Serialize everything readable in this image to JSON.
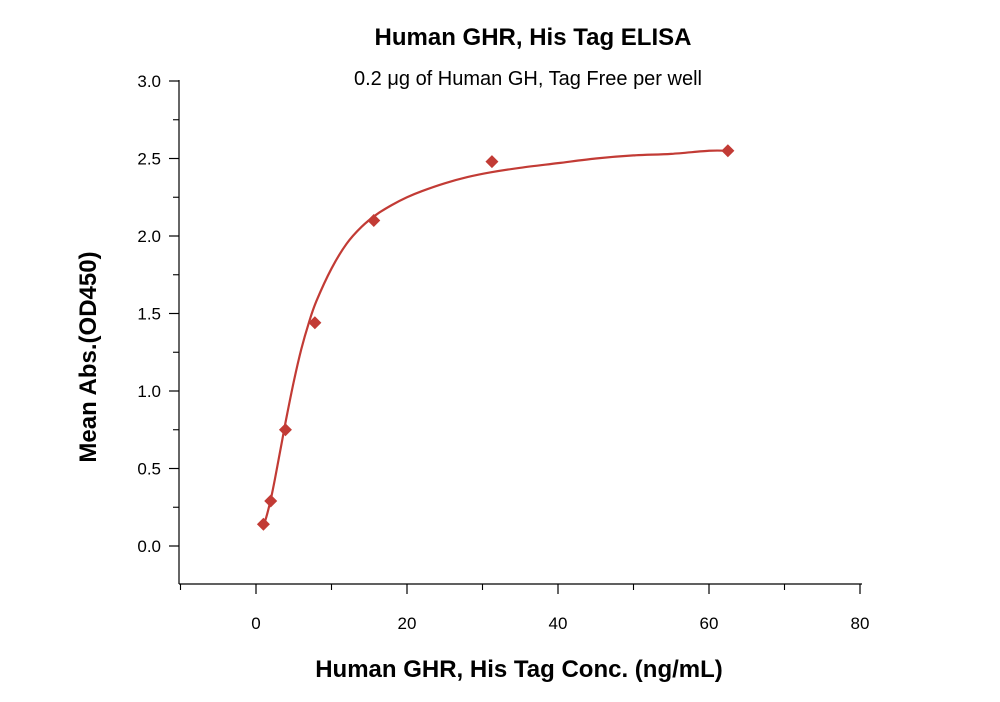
{
  "chart_data": {
    "type": "scatter",
    "title": "Human GHR, His Tag ELISA",
    "subtitle": "0.2 μg of Human GH, Tag Free per well",
    "xlabel": "Human GHR, His Tag Conc. (ng/mL)",
    "ylabel": "Mean Abs.(OD450)",
    "xlim": [
      -10,
      80
    ],
    "ylim": [
      -0.25,
      3.0
    ],
    "x_ticks": [
      0,
      20,
      40,
      60,
      80
    ],
    "x_tick_labels": [
      "0",
      "20",
      "40",
      "60",
      "80"
    ],
    "y_ticks": [
      0.0,
      0.5,
      1.0,
      1.5,
      2.0,
      2.5,
      3.0
    ],
    "y_tick_labels": [
      "0.0",
      "0.5",
      "1.0",
      "1.5",
      "2.0",
      "2.5",
      "3.0"
    ],
    "grid": false,
    "series": [
      {
        "x": [
          0.98,
          1.95,
          3.9,
          7.8,
          15.6,
          31.25,
          62.5
        ],
        "y": [
          0.14,
          0.29,
          0.75,
          1.44,
          2.1,
          2.48,
          2.55
        ],
        "marker": "diamond",
        "color": "#c23b35"
      }
    ],
    "fit_curve": {
      "x": [
        1.2,
        1.5,
        2,
        2.5,
        3,
        3.5,
        4,
        5,
        6,
        7,
        8,
        10,
        12,
        14,
        16,
        18,
        20,
        22,
        25,
        28,
        31,
        35,
        40,
        45,
        50,
        55,
        60,
        62.5
      ],
      "y": [
        0.16,
        0.21,
        0.31,
        0.43,
        0.56,
        0.69,
        0.82,
        1.06,
        1.27,
        1.44,
        1.58,
        1.79,
        1.95,
        2.06,
        2.14,
        2.2,
        2.25,
        2.29,
        2.34,
        2.38,
        2.41,
        2.44,
        2.47,
        2.5,
        2.52,
        2.53,
        2.55,
        2.55
      ],
      "color": "#c23b35"
    }
  }
}
